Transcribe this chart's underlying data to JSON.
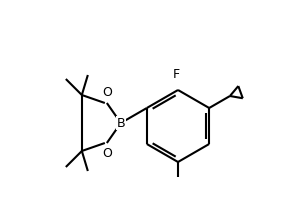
{
  "bg_color": "#ffffff",
  "line_color": "#000000",
  "line_width": 1.5,
  "font_size_label": 9,
  "F_label": "F",
  "B_label": "B",
  "O_label": "O"
}
